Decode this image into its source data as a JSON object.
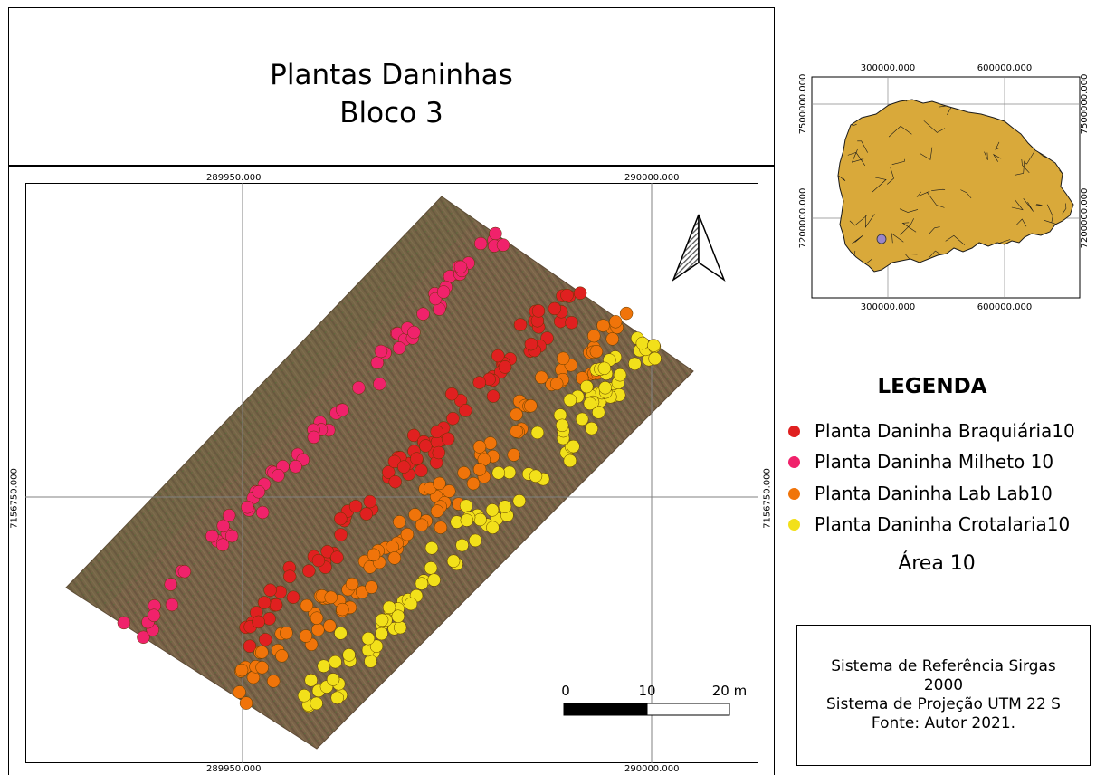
{
  "map_title": {
    "line1": "Plantas Daninhas",
    "line2": "Bloco 3"
  },
  "main_map": {
    "grid_labels": {
      "top_left": "289950.000",
      "top_right": "290000.000",
      "bottom_left": "289950.000",
      "bottom_right": "290000.000",
      "left": "7156750.000",
      "right": "7156750.000"
    },
    "north_arrow": "north-arrow-icon",
    "scale_bar": {
      "labels": [
        "0",
        "10",
        "20 m"
      ]
    }
  },
  "inset_map": {
    "x_ticks": [
      "300000.000",
      "600000.000"
    ],
    "y_ticks": [
      "7500000.000",
      "7200000.000"
    ],
    "fill_color": "#d9a93a"
  },
  "legend": {
    "title": "LEGENDA",
    "items": [
      {
        "label": "Planta Daninha Braquiária10",
        "color": "#e02020"
      },
      {
        "label": "Planta Daninha Milheto 10",
        "color": "#f0226b"
      },
      {
        "label": "Planta Daninha Lab Lab10",
        "color": "#f0740a"
      },
      {
        "label": "Planta Daninha Crotalaria10",
        "color": "#f2e01a"
      }
    ],
    "area": "Área 10"
  },
  "reference": {
    "line1": "Sistema de Referência Sirgas",
    "line2": "2000",
    "line3": "Sistema de Projeção UTM 22 S",
    "line4": "Fonte: Autor 2021."
  }
}
